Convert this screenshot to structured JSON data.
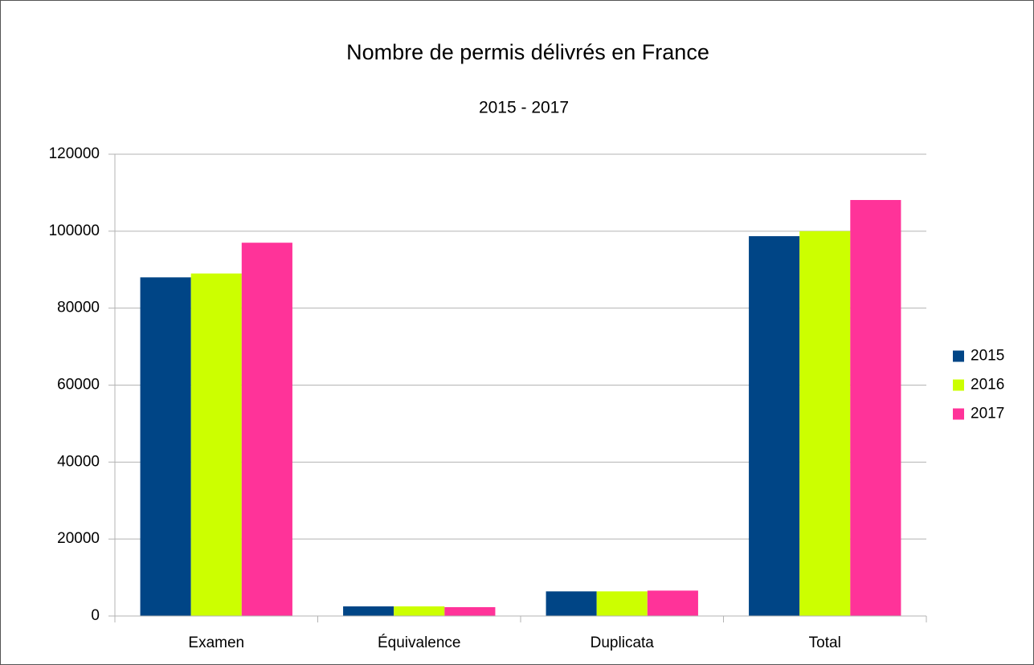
{
  "chart_data": {
    "type": "bar",
    "title": "Nombre de permis délivrés en France",
    "subtitle": "2015 - 2017",
    "categories": [
      "Examen",
      "Équivalence",
      "Duplicata",
      "Total"
    ],
    "series": [
      {
        "name": "2015",
        "color": "#004586",
        "values": [
          88000,
          2500,
          6400,
          98700
        ]
      },
      {
        "name": "2016",
        "color": "#ccff00",
        "values": [
          89000,
          2500,
          6400,
          100000
        ]
      },
      {
        "name": "2017",
        "color": "#ff3399",
        "values": [
          97000,
          2300,
          6600,
          108100
        ]
      }
    ],
    "ylim": [
      0,
      120000
    ],
    "yticks": [
      0,
      20000,
      40000,
      60000,
      80000,
      100000,
      120000
    ],
    "grid": true,
    "legend": "right"
  }
}
